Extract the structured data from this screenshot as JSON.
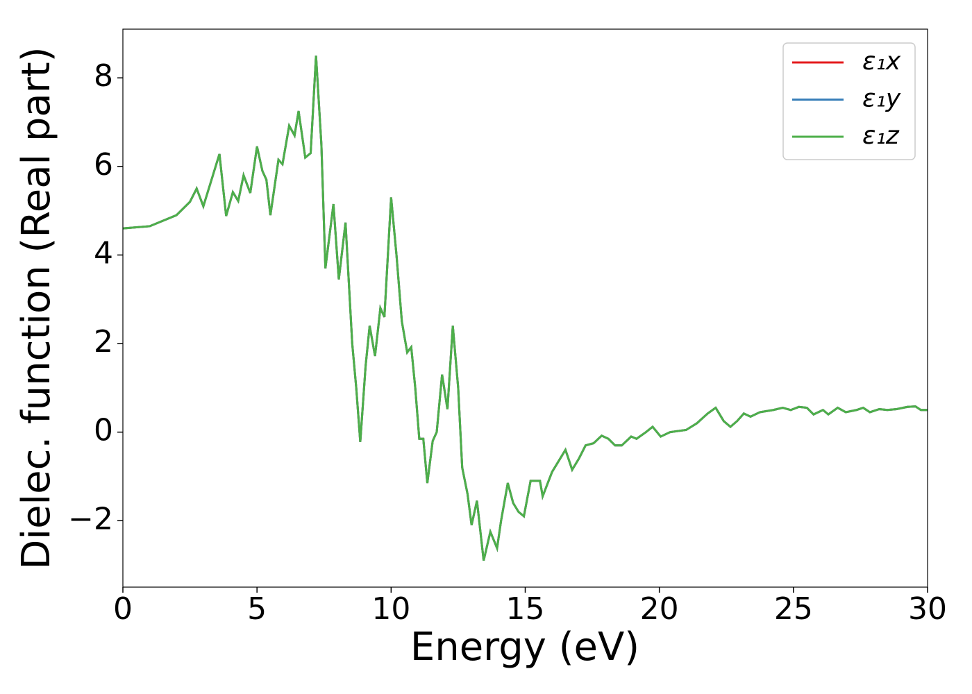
{
  "chart_data": {
    "type": "line",
    "xlabel": "Energy (eV)",
    "ylabel": "Dielec. function (Real part)",
    "xlim": [
      0,
      30
    ],
    "ylim": [
      -3.5,
      9.1
    ],
    "xticks": [
      0,
      5,
      10,
      15,
      20,
      25,
      30
    ],
    "yticks": [
      {
        "value": -2,
        "label": "−2"
      },
      0,
      2,
      4,
      6,
      8
    ],
    "legend": "upper right",
    "x": [
      0,
      1,
      2,
      2.5,
      2.75,
      3.0,
      3.6,
      3.85,
      4.1,
      4.3,
      4.5,
      4.75,
      5.0,
      5.2,
      5.35,
      5.5,
      5.8,
      5.95,
      6.2,
      6.4,
      6.55,
      6.8,
      7.0,
      7.2,
      7.4,
      7.55,
      7.85,
      8.05,
      8.3,
      8.55,
      8.7,
      8.85,
      9.05,
      9.2,
      9.4,
      9.6,
      9.75,
      10.0,
      10.2,
      10.4,
      10.6,
      10.75,
      10.9,
      11.05,
      11.2,
      11.35,
      11.55,
      11.7,
      11.9,
      12.1,
      12.3,
      12.5,
      12.65,
      12.85,
      13.0,
      13.2,
      13.45,
      13.7,
      13.95,
      14.1,
      14.35,
      14.55,
      14.75,
      14.95,
      15.2,
      15.55,
      15.65,
      16.0,
      16.3,
      16.5,
      16.75,
      17.0,
      17.25,
      17.55,
      17.85,
      18.1,
      18.35,
      18.6,
      18.95,
      19.15,
      19.5,
      19.75,
      20.05,
      20.4,
      21.0,
      21.4,
      21.8,
      22.1,
      22.4,
      22.65,
      22.9,
      23.15,
      23.4,
      23.75,
      24.25,
      24.6,
      24.9,
      25.2,
      25.5,
      25.75,
      26.1,
      26.3,
      26.65,
      26.95,
      27.35,
      27.6,
      27.85,
      28.2,
      28.5,
      28.85,
      29.25,
      29.55,
      29.75,
      30.0
    ],
    "series": [
      {
        "name": "ε₁x",
        "color": "#e41a1c",
        "values": [
          4.6,
          4.65,
          4.9,
          5.2,
          5.5,
          5.1,
          6.28,
          4.88,
          5.42,
          5.22,
          5.8,
          5.4,
          6.45,
          5.9,
          5.7,
          4.9,
          6.15,
          6.05,
          6.92,
          6.7,
          7.25,
          6.2,
          6.3,
          8.5,
          6.5,
          3.7,
          5.15,
          3.45,
          4.73,
          2.0,
          1.0,
          -0.22,
          1.5,
          2.4,
          1.72,
          2.8,
          2.6,
          5.3,
          4.0,
          2.5,
          1.8,
          1.92,
          1.0,
          -0.15,
          -0.15,
          -1.15,
          -0.2,
          0.0,
          1.3,
          0.52,
          2.4,
          1.0,
          -0.8,
          -1.4,
          -2.1,
          -1.55,
          -2.9,
          -2.25,
          -2.62,
          -2.0,
          -1.15,
          -1.6,
          -1.8,
          -1.9,
          -1.1,
          -1.1,
          -1.45,
          -0.9,
          -0.6,
          -0.4,
          -0.85,
          -0.6,
          -0.3,
          -0.25,
          -0.08,
          -0.15,
          -0.3,
          -0.3,
          -0.1,
          -0.15,
          0.0,
          0.12,
          -0.1,
          0.0,
          0.05,
          0.2,
          0.42,
          0.55,
          0.25,
          0.12,
          0.25,
          0.42,
          0.35,
          0.45,
          0.5,
          0.55,
          0.5,
          0.57,
          0.55,
          0.4,
          0.5,
          0.4,
          0.55,
          0.45,
          0.5,
          0.55,
          0.45,
          0.52,
          0.5,
          0.52,
          0.57,
          0.58,
          0.5,
          0.5
        ]
      },
      {
        "name": "ε₁y",
        "color": "#377eb8",
        "values": [
          4.6,
          4.65,
          4.9,
          5.2,
          5.5,
          5.1,
          6.28,
          4.88,
          5.42,
          5.22,
          5.8,
          5.4,
          6.45,
          5.9,
          5.7,
          4.9,
          6.15,
          6.05,
          6.92,
          6.7,
          7.25,
          6.2,
          6.3,
          8.5,
          6.5,
          3.7,
          5.15,
          3.45,
          4.73,
          2.0,
          1.0,
          -0.22,
          1.5,
          2.4,
          1.72,
          2.8,
          2.6,
          5.3,
          4.0,
          2.5,
          1.8,
          1.92,
          1.0,
          -0.15,
          -0.15,
          -1.15,
          -0.2,
          0.0,
          1.3,
          0.52,
          2.4,
          1.0,
          -0.8,
          -1.4,
          -2.1,
          -1.55,
          -2.9,
          -2.25,
          -2.62,
          -2.0,
          -1.15,
          -1.6,
          -1.8,
          -1.9,
          -1.1,
          -1.1,
          -1.45,
          -0.9,
          -0.6,
          -0.4,
          -0.85,
          -0.6,
          -0.3,
          -0.25,
          -0.08,
          -0.15,
          -0.3,
          -0.3,
          -0.1,
          -0.15,
          0.0,
          0.12,
          -0.1,
          0.0,
          0.05,
          0.2,
          0.42,
          0.55,
          0.25,
          0.12,
          0.25,
          0.42,
          0.35,
          0.45,
          0.5,
          0.55,
          0.5,
          0.57,
          0.55,
          0.4,
          0.5,
          0.4,
          0.55,
          0.45,
          0.5,
          0.55,
          0.45,
          0.52,
          0.5,
          0.52,
          0.57,
          0.58,
          0.5,
          0.5
        ]
      },
      {
        "name": "ε₁z",
        "color": "#4daf4a",
        "values": [
          4.6,
          4.65,
          4.9,
          5.2,
          5.5,
          5.1,
          6.28,
          4.88,
          5.42,
          5.22,
          5.8,
          5.4,
          6.45,
          5.9,
          5.7,
          4.9,
          6.15,
          6.05,
          6.92,
          6.7,
          7.25,
          6.2,
          6.3,
          8.5,
          6.5,
          3.7,
          5.15,
          3.45,
          4.73,
          2.0,
          1.0,
          -0.22,
          1.5,
          2.4,
          1.72,
          2.8,
          2.6,
          5.3,
          4.0,
          2.5,
          1.8,
          1.92,
          1.0,
          -0.15,
          -0.15,
          -1.15,
          -0.2,
          0.0,
          1.3,
          0.52,
          2.4,
          1.0,
          -0.8,
          -1.4,
          -2.1,
          -1.55,
          -2.9,
          -2.25,
          -2.62,
          -2.0,
          -1.15,
          -1.6,
          -1.8,
          -1.9,
          -1.1,
          -1.1,
          -1.45,
          -0.9,
          -0.6,
          -0.4,
          -0.85,
          -0.6,
          -0.3,
          -0.25,
          -0.08,
          -0.15,
          -0.3,
          -0.3,
          -0.1,
          -0.15,
          0.0,
          0.12,
          -0.1,
          0.0,
          0.05,
          0.2,
          0.42,
          0.55,
          0.25,
          0.12,
          0.25,
          0.42,
          0.35,
          0.45,
          0.5,
          0.55,
          0.5,
          0.57,
          0.55,
          0.4,
          0.5,
          0.4,
          0.55,
          0.45,
          0.5,
          0.55,
          0.45,
          0.52,
          0.5,
          0.52,
          0.57,
          0.58,
          0.5,
          0.5
        ]
      }
    ]
  }
}
